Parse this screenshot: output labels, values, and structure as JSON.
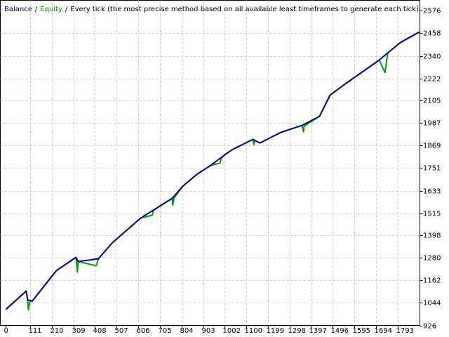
{
  "chart_data": {
    "type": "line",
    "title": "Every tick (the most precise method based on all available least timeframes to generate each tick)",
    "legend_separator": "/",
    "series": [
      {
        "name": "Balance",
        "color": "#00008b",
        "x": [
          0,
          93,
          100,
          122,
          231,
          321,
          331,
          424,
          488,
          617,
          761,
          809,
          874,
          938,
          1002,
          1035,
          1131,
          1163,
          1260,
          1356,
          1436,
          1484,
          1549,
          1709,
          1748,
          1806,
          1892
        ],
        "values": [
          1010,
          1106,
          1060,
          1055,
          1213,
          1283,
          1261,
          1276,
          1360,
          1489,
          1592,
          1655,
          1718,
          1766,
          1821,
          1847,
          1902,
          1883,
          1939,
          1975,
          2023,
          2134,
          2189,
          2318,
          2355,
          2410,
          2465
        ]
      },
      {
        "name": "Equity",
        "color": "#00a000",
        "x": [
          0,
          93,
          100,
          103,
          110,
          122,
          231,
          321,
          328,
          331,
          414,
          424,
          488,
          617,
          671,
          675,
          761,
          764,
          770,
          809,
          874,
          938,
          980,
          985,
          1002,
          1035,
          1131,
          1135,
          1140,
          1163,
          1260,
          1356,
          1362,
          1366,
          1436,
          1484,
          1549,
          1709,
          1735,
          1748,
          1806,
          1892
        ],
        "values": [
          1010,
          1106,
          1060,
          1007,
          1050,
          1055,
          1213,
          1283,
          1206,
          1261,
          1239,
          1276,
          1360,
          1489,
          1504,
          1530,
          1592,
          1556,
          1595,
          1655,
          1718,
          1766,
          1777,
          1800,
          1821,
          1847,
          1902,
          1875,
          1895,
          1883,
          1939,
          1975,
          1942,
          1972,
          2023,
          2134,
          2189,
          2318,
          2252,
          2355,
          2410,
          2465
        ]
      }
    ],
    "xlim": [
      -25,
      1895
    ],
    "xticks": [
      0,
      111,
      210,
      309,
      408,
      507,
      606,
      705,
      804,
      903,
      1002,
      1100,
      1199,
      1298,
      1397,
      1496,
      1595,
      1694,
      1793
    ],
    "ylim": [
      926,
      2631
    ],
    "yticks": [
      926,
      1044,
      1162,
      1280,
      1398,
      1515,
      1633,
      1751,
      1869,
      1987,
      2105,
      2222,
      2340,
      2458,
      2576
    ],
    "grid": true
  }
}
